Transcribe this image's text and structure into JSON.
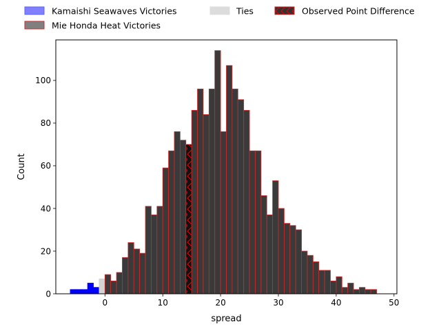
{
  "chart_data": {
    "type": "bar",
    "title": "",
    "xlabel": "spread",
    "ylabel": "Count",
    "xlim": [
      -8.5,
      50.5
    ],
    "ylim": [
      0,
      119
    ],
    "xticks": [
      0,
      10,
      20,
      30,
      40,
      50
    ],
    "yticks": [
      0,
      20,
      40,
      60,
      80,
      100
    ],
    "bin_width": 1,
    "legend_position": "top",
    "legend": [
      {
        "label": "Kamaishi Seawaves Victories",
        "key": "kamaishi"
      },
      {
        "label": "Mie Honda Heat Victories",
        "key": "mie"
      },
      {
        "label": "Ties",
        "key": "ties"
      },
      {
        "label": "Observed Point Difference",
        "key": "observed"
      }
    ],
    "series": [
      {
        "name": "Kamaishi Seawaves Victories",
        "color": "#0000ff",
        "x": [
          -6,
          -5,
          -4,
          -3,
          -2
        ],
        "values": [
          2,
          2,
          2,
          5,
          3
        ]
      },
      {
        "name": "Ties",
        "color": "#d3d3d3",
        "x": [
          -1
        ],
        "values": [
          7
        ]
      },
      {
        "name": "Mie Honda Heat Victories",
        "color": "#3a3a3a",
        "edge_color": "#d62728",
        "x": [
          0,
          1,
          2,
          3,
          4,
          5,
          6,
          7,
          8,
          9,
          10,
          11,
          12,
          13,
          15,
          16,
          17,
          18,
          19,
          20,
          21,
          22,
          23,
          24,
          25,
          26,
          27,
          28,
          29,
          30,
          31,
          32,
          33,
          34,
          35,
          36,
          37,
          38,
          39,
          40,
          41,
          42,
          43,
          44,
          45,
          46
        ],
        "values": [
          9,
          6,
          10,
          17,
          24,
          21,
          19,
          41,
          37,
          41,
          59,
          67,
          76,
          72,
          86,
          96,
          84,
          96,
          114,
          76,
          107,
          96,
          91,
          86,
          67,
          67,
          46,
          37,
          53,
          40,
          33,
          32,
          30,
          20,
          18,
          15,
          11,
          11,
          6,
          8,
          3,
          5,
          2,
          3,
          2,
          2
        ]
      },
      {
        "name": "Observed Point Difference",
        "color": "#111111",
        "edge_color": "#d62728",
        "x": [
          14
        ],
        "values": [
          70
        ]
      }
    ]
  }
}
